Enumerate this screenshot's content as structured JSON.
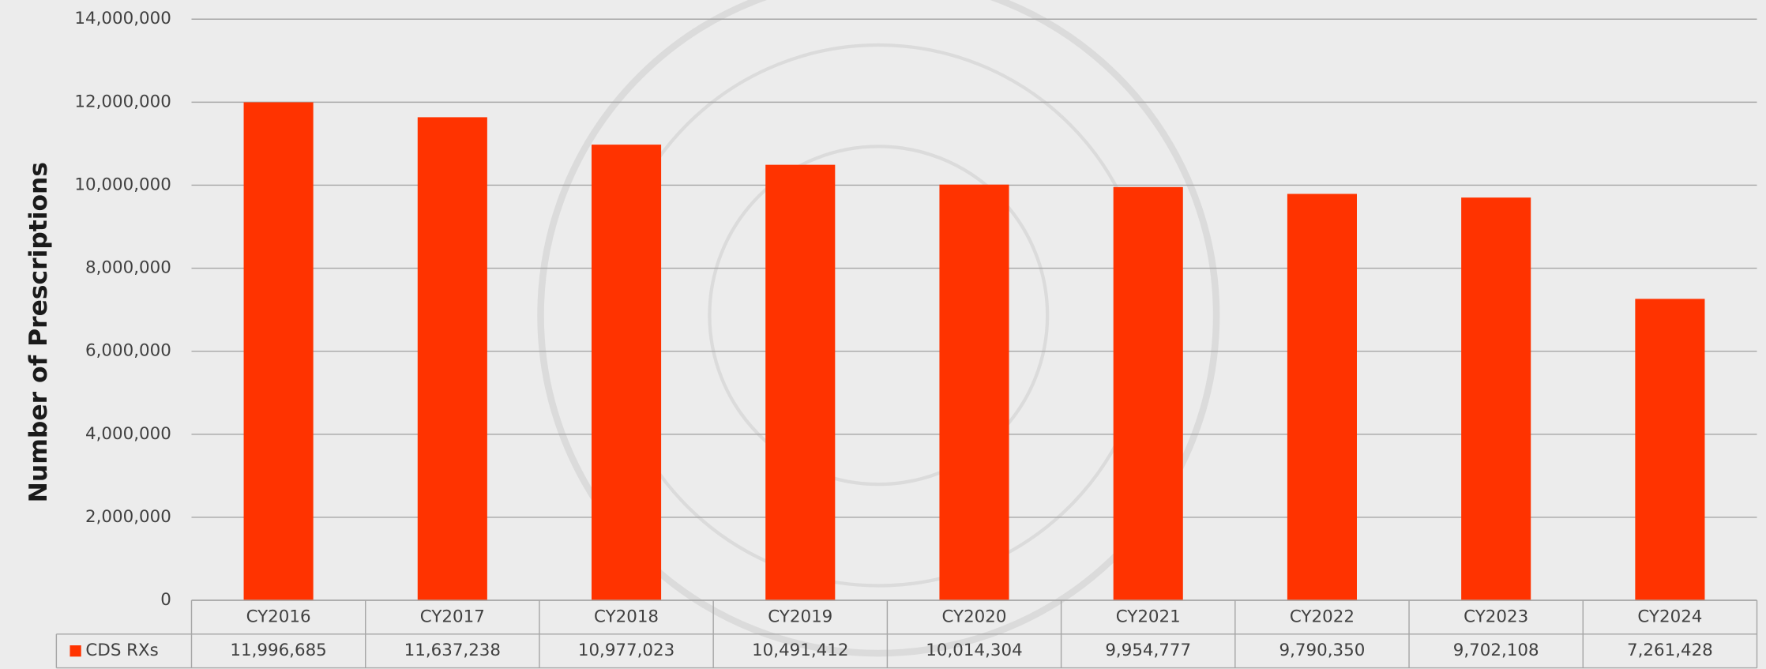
{
  "chart_data": {
    "type": "bar",
    "y_label": "Number of Prescriptions",
    "categories": [
      "CY2016",
      "CY2017",
      "CY2018",
      "CY2019",
      "CY2020",
      "CY2021",
      "CY2022",
      "CY2023",
      "CY2024"
    ],
    "series": [
      {
        "name": "CDS RXs",
        "color": "#ff3300",
        "values": [
          11996685,
          11637238,
          10977023,
          10491412,
          10014304,
          9954777,
          9790350,
          9702108,
          7261428
        ],
        "value_labels": [
          "11,996,685",
          "11,637,238",
          "10,977,023",
          "10,491,412",
          "10,014,304",
          "9,954,777",
          "9,790,350",
          "9,702,108",
          "7,261,428"
        ]
      }
    ],
    "ylim": [
      0,
      14000000
    ],
    "yticks": [
      0,
      {
        "value": 2000000,
        "label": "2,000,000"
      },
      {
        "value": 4000000,
        "label": "4,000,000"
      },
      {
        "value": 6000000,
        "label": "6,000,000"
      },
      {
        "value": 8000000,
        "label": "8,000,000"
      },
      {
        "value": 10000000,
        "label": "10,000,000"
      },
      {
        "value": 12000000,
        "label": "12,000,000"
      },
      {
        "value": 14000000,
        "label": "14,000,000"
      }
    ],
    "grid": true,
    "legend": "data-table"
  }
}
